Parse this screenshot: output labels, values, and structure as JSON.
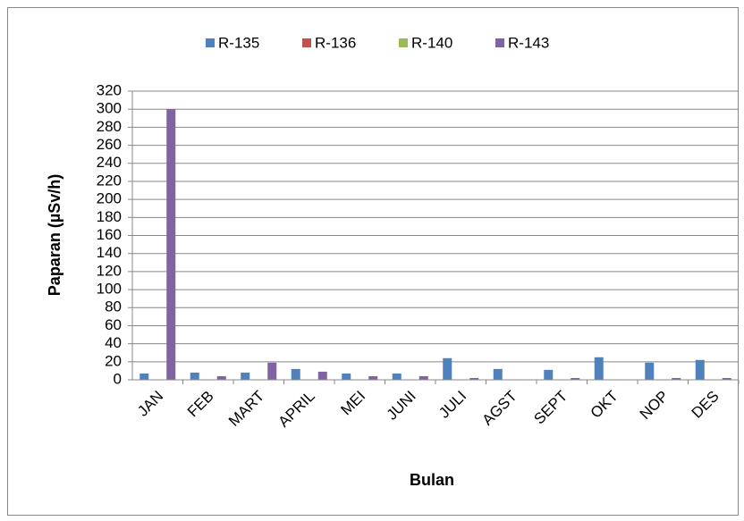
{
  "chart_data": {
    "type": "bar",
    "categories": [
      "JAN",
      "FEB",
      "MART",
      "APRIL",
      "MEI",
      "JUNI",
      "JULI",
      "AGST",
      "SEPT",
      "OKT",
      "NOP",
      "DES"
    ],
    "series": [
      {
        "name": "R-135",
        "color": "#4f81bd",
        "values": [
          7,
          8,
          8,
          12,
          7,
          7,
          24,
          12,
          11,
          25,
          19,
          22
        ]
      },
      {
        "name": "R-136",
        "color": "#c0504d",
        "values": [
          0,
          0,
          0,
          0,
          0,
          0,
          0,
          0,
          0,
          0,
          0,
          0
        ]
      },
      {
        "name": "R-140",
        "color": "#9bbb59",
        "values": [
          0,
          0,
          0,
          0,
          0,
          0,
          0,
          0,
          0,
          0,
          0,
          0
        ]
      },
      {
        "name": "R-143",
        "color": "#8064a2",
        "values": [
          300,
          4,
          19,
          9,
          4,
          4,
          2,
          0,
          2,
          0,
          2,
          2
        ]
      }
    ],
    "x_label": "Bulan",
    "y_label": "Paparan (µSv/h)",
    "ylim": [
      0,
      320
    ],
    "yticks": [
      0,
      20,
      40,
      60,
      80,
      100,
      120,
      140,
      160,
      180,
      200,
      220,
      240,
      260,
      280,
      300,
      320
    ],
    "grid": true,
    "legend": "top"
  }
}
